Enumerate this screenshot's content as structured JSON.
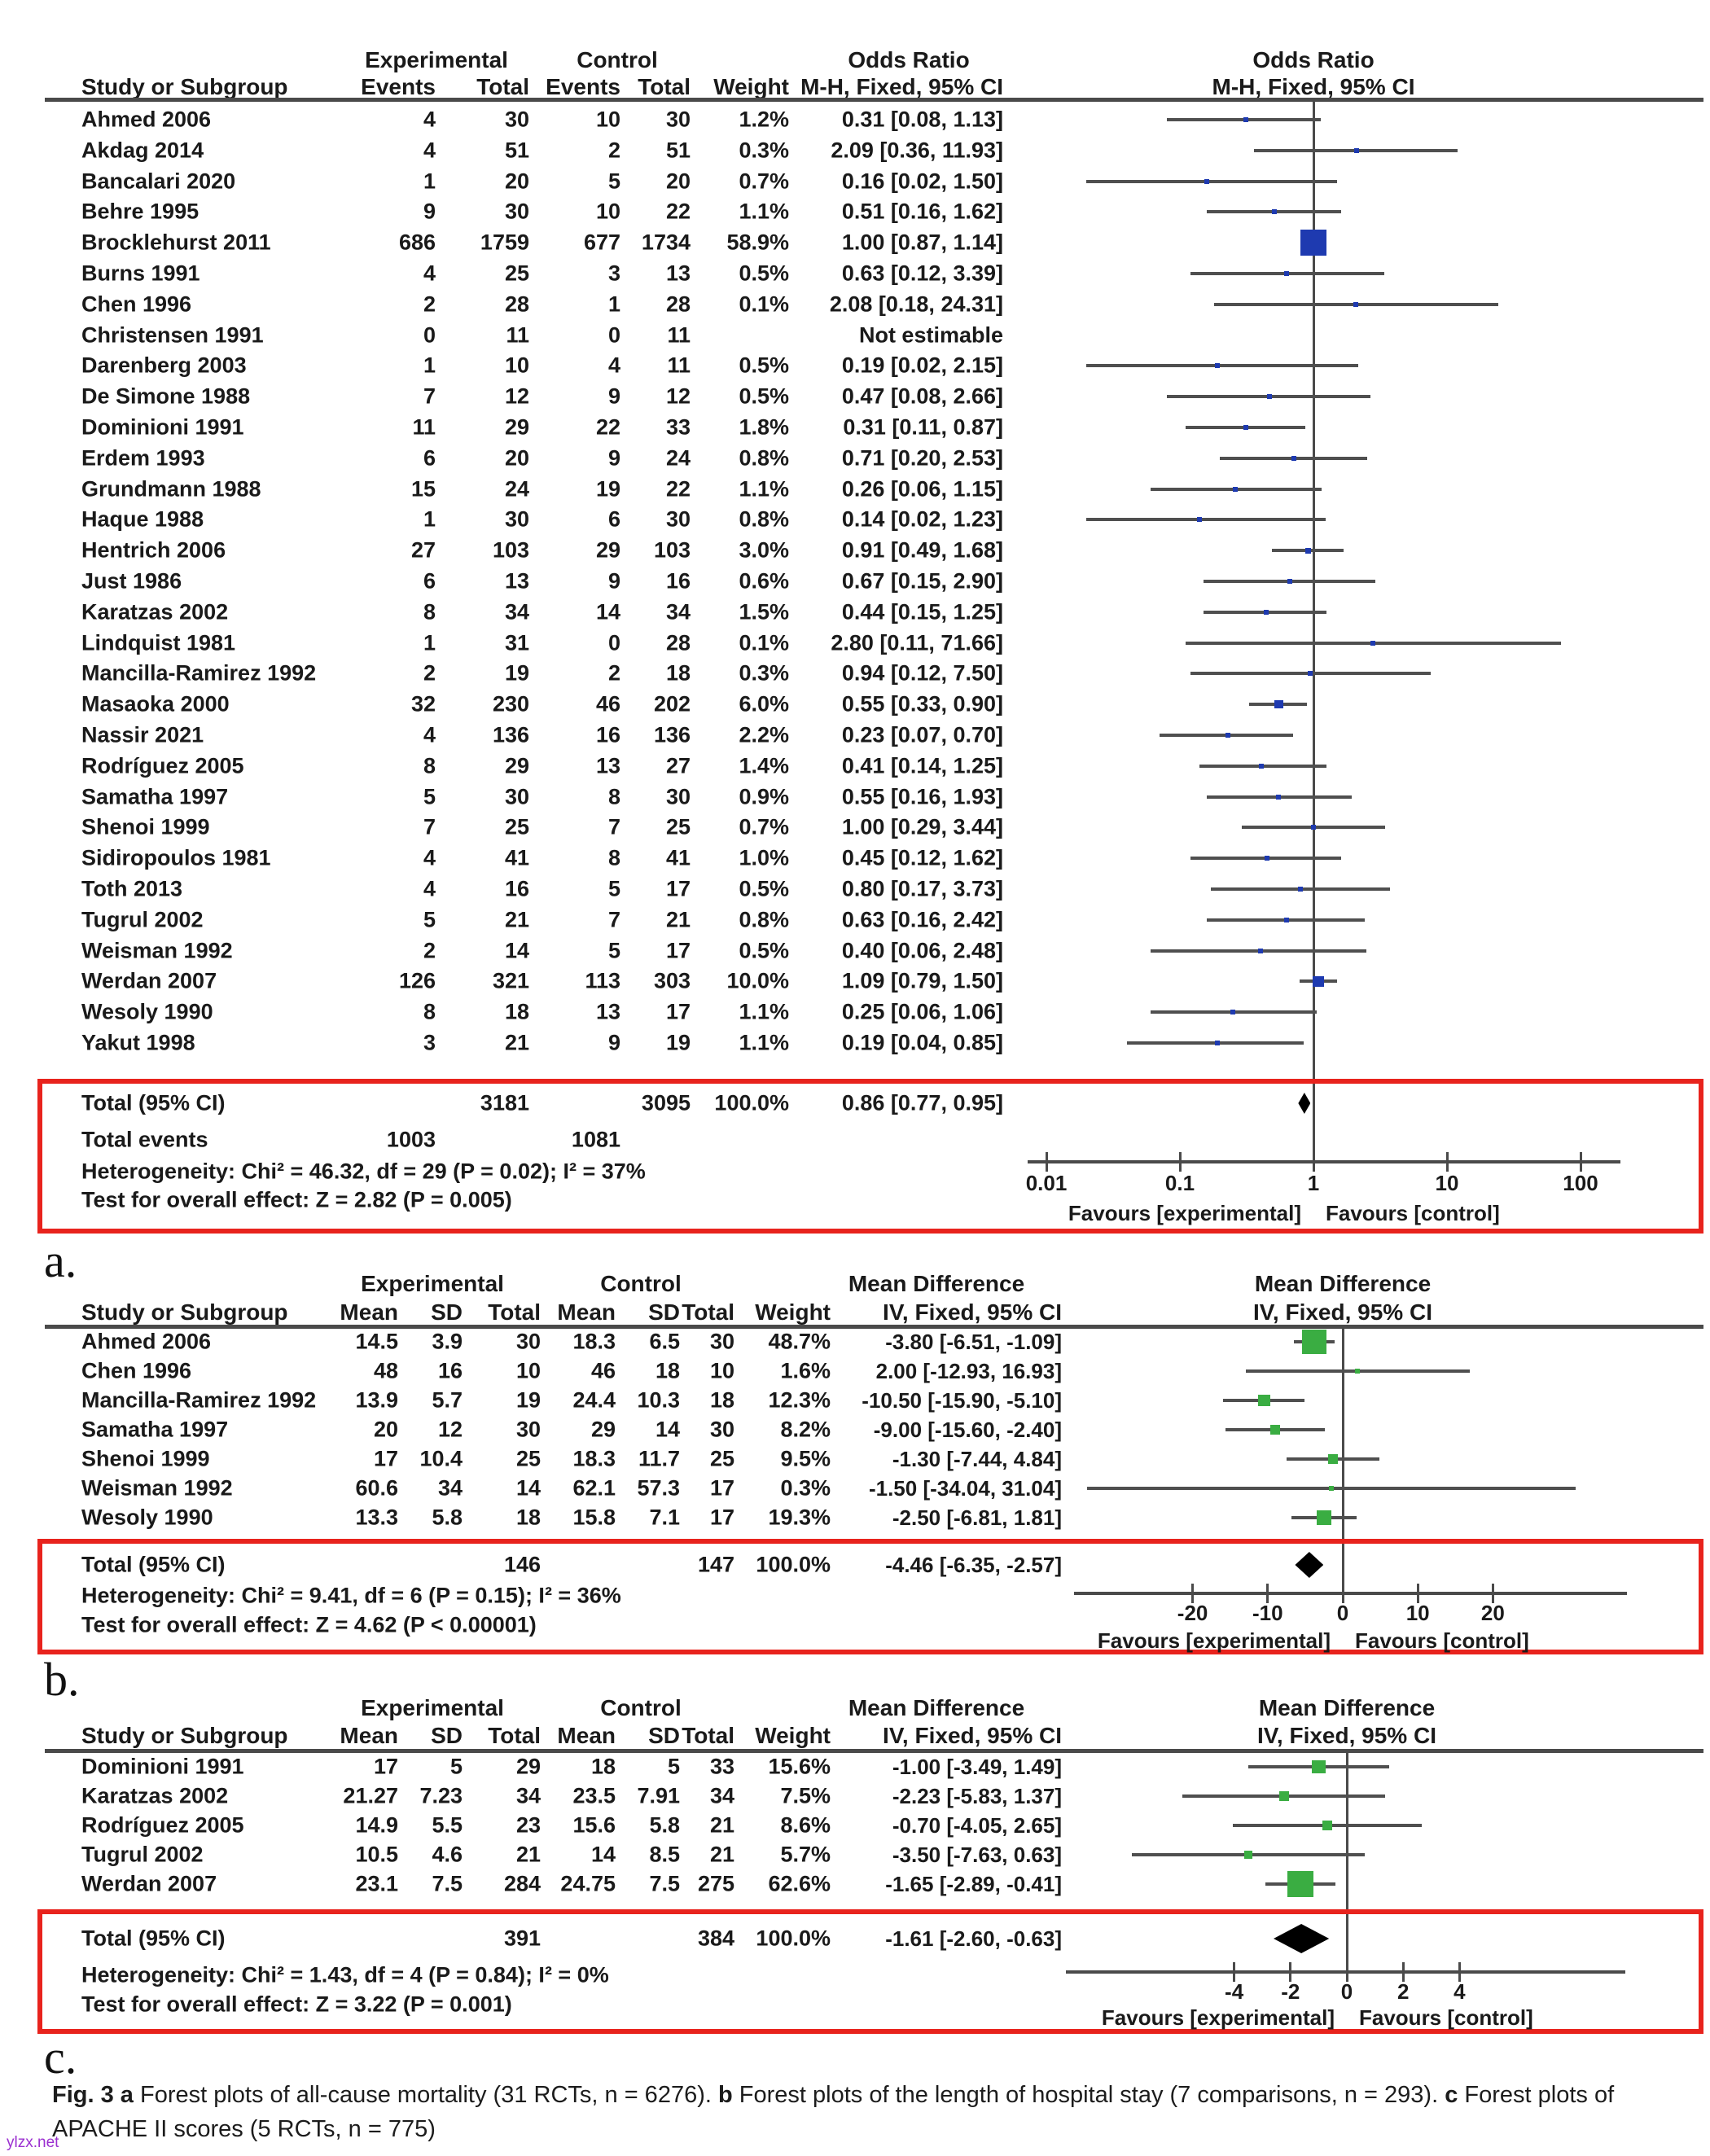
{
  "watermark": "ylzx.net",
  "caption": {
    "segments": [
      {
        "t": "Fig. 3",
        "b": true
      },
      {
        "t": "  ",
        "b": false
      },
      {
        "t": "a",
        "b": true
      },
      {
        "t": " Forest plots of all-cause mortality (31 RCTs, n = 6276). ",
        "b": false
      },
      {
        "t": "b",
        "b": true
      },
      {
        "t": " Forest plots of the length of hospital stay (7 comparisons, n = 293). ",
        "b": false
      },
      {
        "t": "c",
        "b": true
      },
      {
        "t": " Forest plots of APACHE II scores (5 RCTs, n = 775)",
        "b": false
      }
    ]
  },
  "colors": {
    "or_marker": "#1e3ab0",
    "md_marker": "#3aad42",
    "ci_line": "#4f4f4f",
    "axis": "#4a4a4a",
    "diamond": "#000000",
    "highlight_box": "#e8231d",
    "text": "#1a1a1a",
    "watermark": "#9b30d0"
  },
  "chart_data": [
    {
      "id": "a",
      "panel_letter": "a.",
      "type": "forest",
      "effect_measure": "Odds Ratio",
      "method": "M-H, Fixed, 95% CI",
      "group1": "Experimental",
      "group2": "Control",
      "study_col_header": "Study or Subgroup",
      "col_headers": [
        "Events",
        "Total",
        "Events",
        "Total",
        "Weight",
        "M-H, Fixed, 95% CI"
      ],
      "scale": "log10",
      "axis_ticks": [
        0.01,
        0.1,
        1,
        10,
        100
      ],
      "axis_tick_labels": [
        "0.01",
        "0.1",
        "1",
        "10",
        "100"
      ],
      "favours_left": "Favours [experimental]",
      "favours_right": "Favours [control]",
      "marker_color": "#1e3ab0",
      "studies": [
        {
          "study": "Ahmed 2006",
          "e1": "4",
          "t1": "30",
          "e2": "10",
          "t2": "30",
          "weight": "1.2%",
          "ci": "0.31 [0.08, 1.13]",
          "est": 0.31,
          "lo": 0.08,
          "hi": 1.13,
          "wnum": 1.2
        },
        {
          "study": "Akdag 2014",
          "e1": "4",
          "t1": "51",
          "e2": "2",
          "t2": "51",
          "weight": "0.3%",
          "ci": "2.09 [0.36, 11.93]",
          "est": 2.09,
          "lo": 0.36,
          "hi": 11.93,
          "wnum": 0.3
        },
        {
          "study": "Bancalari 2020",
          "e1": "1",
          "t1": "20",
          "e2": "5",
          "t2": "20",
          "weight": "0.7%",
          "ci": "0.16 [0.02, 1.50]",
          "est": 0.16,
          "lo": 0.02,
          "hi": 1.5,
          "wnum": 0.7
        },
        {
          "study": "Behre 1995",
          "e1": "9",
          "t1": "30",
          "e2": "10",
          "t2": "22",
          "weight": "1.1%",
          "ci": "0.51 [0.16, 1.62]",
          "est": 0.51,
          "lo": 0.16,
          "hi": 1.62,
          "wnum": 1.1
        },
        {
          "study": "Brocklehurst 2011",
          "e1": "686",
          "t1": "1759",
          "e2": "677",
          "t2": "1734",
          "weight": "58.9%",
          "ci": "1.00 [0.87, 1.14]",
          "est": 1.0,
          "lo": 0.87,
          "hi": 1.14,
          "wnum": 58.9
        },
        {
          "study": "Burns 1991",
          "e1": "4",
          "t1": "25",
          "e2": "3",
          "t2": "13",
          "weight": "0.5%",
          "ci": "0.63 [0.12, 3.39]",
          "est": 0.63,
          "lo": 0.12,
          "hi": 3.39,
          "wnum": 0.5
        },
        {
          "study": "Chen 1996",
          "e1": "2",
          "t1": "28",
          "e2": "1",
          "t2": "28",
          "weight": "0.1%",
          "ci": "2.08 [0.18, 24.31]",
          "est": 2.08,
          "lo": 0.18,
          "hi": 24.31,
          "wnum": 0.1
        },
        {
          "study": "Christensen 1991",
          "e1": "0",
          "t1": "11",
          "e2": "0",
          "t2": "11",
          "weight": "",
          "ci": "Not estimable",
          "est": null,
          "lo": null,
          "hi": null,
          "wnum": null
        },
        {
          "study": "Darenberg 2003",
          "e1": "1",
          "t1": "10",
          "e2": "4",
          "t2": "11",
          "weight": "0.5%",
          "ci": "0.19 [0.02, 2.15]",
          "est": 0.19,
          "lo": 0.02,
          "hi": 2.15,
          "wnum": 0.5
        },
        {
          "study": "De Simone 1988",
          "e1": "7",
          "t1": "12",
          "e2": "9",
          "t2": "12",
          "weight": "0.5%",
          "ci": "0.47 [0.08, 2.66]",
          "est": 0.47,
          "lo": 0.08,
          "hi": 2.66,
          "wnum": 0.5
        },
        {
          "study": "Dominioni 1991",
          "e1": "11",
          "t1": "29",
          "e2": "22",
          "t2": "33",
          "weight": "1.8%",
          "ci": "0.31 [0.11, 0.87]",
          "est": 0.31,
          "lo": 0.11,
          "hi": 0.87,
          "wnum": 1.8
        },
        {
          "study": "Erdem 1993",
          "e1": "6",
          "t1": "20",
          "e2": "9",
          "t2": "24",
          "weight": "0.8%",
          "ci": "0.71 [0.20, 2.53]",
          "est": 0.71,
          "lo": 0.2,
          "hi": 2.53,
          "wnum": 0.8
        },
        {
          "study": "Grundmann 1988",
          "e1": "15",
          "t1": "24",
          "e2": "19",
          "t2": "22",
          "weight": "1.1%",
          "ci": "0.26 [0.06, 1.15]",
          "est": 0.26,
          "lo": 0.06,
          "hi": 1.15,
          "wnum": 1.1
        },
        {
          "study": "Haque 1988",
          "e1": "1",
          "t1": "30",
          "e2": "6",
          "t2": "30",
          "weight": "0.8%",
          "ci": "0.14 [0.02, 1.23]",
          "est": 0.14,
          "lo": 0.02,
          "hi": 1.23,
          "wnum": 0.8
        },
        {
          "study": "Hentrich 2006",
          "e1": "27",
          "t1": "103",
          "e2": "29",
          "t2": "103",
          "weight": "3.0%",
          "ci": "0.91 [0.49, 1.68]",
          "est": 0.91,
          "lo": 0.49,
          "hi": 1.68,
          "wnum": 3.0
        },
        {
          "study": "Just 1986",
          "e1": "6",
          "t1": "13",
          "e2": "9",
          "t2": "16",
          "weight": "0.6%",
          "ci": "0.67 [0.15, 2.90]",
          "est": 0.67,
          "lo": 0.15,
          "hi": 2.9,
          "wnum": 0.6
        },
        {
          "study": "Karatzas 2002",
          "e1": "8",
          "t1": "34",
          "e2": "14",
          "t2": "34",
          "weight": "1.5%",
          "ci": "0.44 [0.15, 1.25]",
          "est": 0.44,
          "lo": 0.15,
          "hi": 1.25,
          "wnum": 1.5
        },
        {
          "study": "Lindquist 1981",
          "e1": "1",
          "t1": "31",
          "e2": "0",
          "t2": "28",
          "weight": "0.1%",
          "ci": "2.80 [0.11, 71.66]",
          "est": 2.8,
          "lo": 0.11,
          "hi": 71.66,
          "wnum": 0.1
        },
        {
          "study": "Mancilla-Ramirez 1992",
          "e1": "2",
          "t1": "19",
          "e2": "2",
          "t2": "18",
          "weight": "0.3%",
          "ci": "0.94 [0.12, 7.50]",
          "est": 0.94,
          "lo": 0.12,
          "hi": 7.5,
          "wnum": 0.3
        },
        {
          "study": "Masaoka 2000",
          "e1": "32",
          "t1": "230",
          "e2": "46",
          "t2": "202",
          "weight": "6.0%",
          "ci": "0.55 [0.33, 0.90]",
          "est": 0.55,
          "lo": 0.33,
          "hi": 0.9,
          "wnum": 6.0
        },
        {
          "study": "Nassir 2021",
          "e1": "4",
          "t1": "136",
          "e2": "16",
          "t2": "136",
          "weight": "2.2%",
          "ci": "0.23 [0.07, 0.70]",
          "est": 0.23,
          "lo": 0.07,
          "hi": 0.7,
          "wnum": 2.2
        },
        {
          "study": "Rodríguez 2005",
          "e1": "8",
          "t1": "29",
          "e2": "13",
          "t2": "27",
          "weight": "1.4%",
          "ci": "0.41 [0.14, 1.25]",
          "est": 0.41,
          "lo": 0.14,
          "hi": 1.25,
          "wnum": 1.4
        },
        {
          "study": "Samatha 1997",
          "e1": "5",
          "t1": "30",
          "e2": "8",
          "t2": "30",
          "weight": "0.9%",
          "ci": "0.55 [0.16, 1.93]",
          "est": 0.55,
          "lo": 0.16,
          "hi": 1.93,
          "wnum": 0.9
        },
        {
          "study": "Shenoi 1999",
          "e1": "7",
          "t1": "25",
          "e2": "7",
          "t2": "25",
          "weight": "0.7%",
          "ci": "1.00 [0.29, 3.44]",
          "est": 1.0,
          "lo": 0.29,
          "hi": 3.44,
          "wnum": 0.7
        },
        {
          "study": "Sidiropoulos 1981",
          "e1": "4",
          "t1": "41",
          "e2": "8",
          "t2": "41",
          "weight": "1.0%",
          "ci": "0.45 [0.12, 1.62]",
          "est": 0.45,
          "lo": 0.12,
          "hi": 1.62,
          "wnum": 1.0
        },
        {
          "study": "Toth 2013",
          "e1": "4",
          "t1": "16",
          "e2": "5",
          "t2": "17",
          "weight": "0.5%",
          "ci": "0.80 [0.17, 3.73]",
          "est": 0.8,
          "lo": 0.17,
          "hi": 3.73,
          "wnum": 0.5
        },
        {
          "study": "Tugrul 2002",
          "e1": "5",
          "t1": "21",
          "e2": "7",
          "t2": "21",
          "weight": "0.8%",
          "ci": "0.63 [0.16, 2.42]",
          "est": 0.63,
          "lo": 0.16,
          "hi": 2.42,
          "wnum": 0.8
        },
        {
          "study": "Weisman 1992",
          "e1": "2",
          "t1": "14",
          "e2": "5",
          "t2": "17",
          "weight": "0.5%",
          "ci": "0.40 [0.06, 2.48]",
          "est": 0.4,
          "lo": 0.06,
          "hi": 2.48,
          "wnum": 0.5
        },
        {
          "study": "Werdan 2007",
          "e1": "126",
          "t1": "321",
          "e2": "113",
          "t2": "303",
          "weight": "10.0%",
          "ci": "1.09 [0.79, 1.50]",
          "est": 1.09,
          "lo": 0.79,
          "hi": 1.5,
          "wnum": 10.0
        },
        {
          "study": "Wesoly 1990",
          "e1": "8",
          "t1": "18",
          "e2": "13",
          "t2": "17",
          "weight": "1.1%",
          "ci": "0.25 [0.06, 1.06]",
          "est": 0.25,
          "lo": 0.06,
          "hi": 1.06,
          "wnum": 1.1
        },
        {
          "study": "Yakut 1998",
          "e1": "3",
          "t1": "21",
          "e2": "9",
          "t2": "19",
          "weight": "1.1%",
          "ci": "0.19 [0.04, 0.85]",
          "est": 0.19,
          "lo": 0.04,
          "hi": 0.85,
          "wnum": 1.1
        }
      ],
      "total": {
        "label": "Total (95% CI)",
        "t1": "3181",
        "t2": "3095",
        "weight": "100.0%",
        "ci": "0.86 [0.77, 0.95]",
        "est": 0.86,
        "lo": 0.77,
        "hi": 0.95
      },
      "total_events": {
        "label": "Total events",
        "e1": "1003",
        "e2": "1081"
      },
      "heterogeneity": "Heterogeneity: Chi² = 46.32, df = 29 (P = 0.02); I² = 37%",
      "overall_effect": "Test for overall effect: Z = 2.82 (P = 0.005)"
    },
    {
      "id": "b",
      "panel_letter": "b.",
      "type": "forest",
      "effect_measure": "Mean Difference",
      "method": "IV, Fixed, 95% CI",
      "group1": "Experimental",
      "group2": "Control",
      "study_col_header": "Study or Subgroup",
      "col_headers": [
        "Mean",
        "SD",
        "Total",
        "Mean",
        "SD",
        "Total",
        "Weight",
        "IV, Fixed, 95% CI"
      ],
      "scale": "linear",
      "axis_ticks": [
        -20,
        -10,
        0,
        10,
        20
      ],
      "axis_tick_labels": [
        "-20",
        "-10",
        "0",
        "10",
        "20"
      ],
      "favours_left": "Favours [experimental]",
      "favours_right": "Favours [control]",
      "marker_color": "#3aad42",
      "studies": [
        {
          "study": "Ahmed 2006",
          "m1": "14.5",
          "sd1": "3.9",
          "t1": "30",
          "m2": "18.3",
          "sd2": "6.5",
          "t2": "30",
          "weight": "48.7%",
          "ci": "-3.80 [-6.51, -1.09]",
          "est": -3.8,
          "lo": -6.51,
          "hi": -1.09,
          "wnum": 48.7
        },
        {
          "study": "Chen 1996",
          "m1": "48",
          "sd1": "16",
          "t1": "10",
          "m2": "46",
          "sd2": "18",
          "t2": "10",
          "weight": "1.6%",
          "ci": "2.00 [-12.93, 16.93]",
          "est": 2.0,
          "lo": -12.93,
          "hi": 16.93,
          "wnum": 1.6
        },
        {
          "study": "Mancilla-Ramirez 1992",
          "m1": "13.9",
          "sd1": "5.7",
          "t1": "19",
          "m2": "24.4",
          "sd2": "10.3",
          "t2": "18",
          "weight": "12.3%",
          "ci": "-10.50 [-15.90, -5.10]",
          "est": -10.5,
          "lo": -15.9,
          "hi": -5.1,
          "wnum": 12.3
        },
        {
          "study": "Samatha 1997",
          "m1": "20",
          "sd1": "12",
          "t1": "30",
          "m2": "29",
          "sd2": "14",
          "t2": "30",
          "weight": "8.2%",
          "ci": "-9.00 [-15.60, -2.40]",
          "est": -9.0,
          "lo": -15.6,
          "hi": -2.4,
          "wnum": 8.2
        },
        {
          "study": "Shenoi 1999",
          "m1": "17",
          "sd1": "10.4",
          "t1": "25",
          "m2": "18.3",
          "sd2": "11.7",
          "t2": "25",
          "weight": "9.5%",
          "ci": "-1.30 [-7.44, 4.84]",
          "est": -1.3,
          "lo": -7.44,
          "hi": 4.84,
          "wnum": 9.5
        },
        {
          "study": "Weisman 1992",
          "m1": "60.6",
          "sd1": "34",
          "t1": "14",
          "m2": "62.1",
          "sd2": "57.3",
          "t2": "17",
          "weight": "0.3%",
          "ci": "-1.50 [-34.04, 31.04]",
          "est": -1.5,
          "lo": -34.04,
          "hi": 31.04,
          "wnum": 0.3
        },
        {
          "study": "Wesoly 1990",
          "m1": "13.3",
          "sd1": "5.8",
          "t1": "18",
          "m2": "15.8",
          "sd2": "7.1",
          "t2": "17",
          "weight": "19.3%",
          "ci": "-2.50 [-6.81, 1.81]",
          "est": -2.5,
          "lo": -6.81,
          "hi": 1.81,
          "wnum": 19.3
        }
      ],
      "total": {
        "label": "Total (95% CI)",
        "t1": "146",
        "t2": "147",
        "weight": "100.0%",
        "ci": "-4.46 [-6.35, -2.57]",
        "est": -4.46,
        "lo": -6.35,
        "hi": -2.57
      },
      "heterogeneity": "Heterogeneity: Chi² = 9.41, df = 6 (P = 0.15); I² = 36%",
      "overall_effect": "Test for overall effect: Z = 4.62 (P < 0.00001)"
    },
    {
      "id": "c",
      "panel_letter": "c.",
      "type": "forest",
      "effect_measure": "Mean Difference",
      "method": "IV, Fixed, 95% CI",
      "group1": "Experimental",
      "group2": "Control",
      "study_col_header": "Study or Subgroup",
      "col_headers": [
        "Mean",
        "SD",
        "Total",
        "Mean",
        "SD",
        "Total",
        "Weight",
        "IV, Fixed, 95% CI"
      ],
      "scale": "linear",
      "axis_ticks": [
        -4,
        -2,
        0,
        2,
        4
      ],
      "axis_tick_labels": [
        "-4",
        "-2",
        "0",
        "2",
        "4"
      ],
      "favours_left": "Favours [experimental]",
      "favours_right": "Favours [control]",
      "marker_color": "#3aad42",
      "studies": [
        {
          "study": "Dominioni 1991",
          "m1": "17",
          "sd1": "5",
          "t1": "29",
          "m2": "18",
          "sd2": "5",
          "t2": "33",
          "weight": "15.6%",
          "ci": "-1.00 [-3.49, 1.49]",
          "est": -1.0,
          "lo": -3.49,
          "hi": 1.49,
          "wnum": 15.6
        },
        {
          "study": "Karatzas 2002",
          "m1": "21.27",
          "sd1": "7.23",
          "t1": "34",
          "m2": "23.5",
          "sd2": "7.91",
          "t2": "34",
          "weight": "7.5%",
          "ci": "-2.23 [-5.83, 1.37]",
          "est": -2.23,
          "lo": -5.83,
          "hi": 1.37,
          "wnum": 7.5
        },
        {
          "study": "Rodríguez 2005",
          "m1": "14.9",
          "sd1": "5.5",
          "t1": "23",
          "m2": "15.6",
          "sd2": "5.8",
          "t2": "21",
          "weight": "8.6%",
          "ci": "-0.70 [-4.05, 2.65]",
          "est": -0.7,
          "lo": -4.05,
          "hi": 2.65,
          "wnum": 8.6
        },
        {
          "study": "Tugrul 2002",
          "m1": "10.5",
          "sd1": "4.6",
          "t1": "21",
          "m2": "14",
          "sd2": "8.5",
          "t2": "21",
          "weight": "5.7%",
          "ci": "-3.50 [-7.63, 0.63]",
          "est": -3.5,
          "lo": -7.63,
          "hi": 0.63,
          "wnum": 5.7
        },
        {
          "study": "Werdan 2007",
          "m1": "23.1",
          "sd1": "7.5",
          "t1": "284",
          "m2": "24.75",
          "sd2": "7.5",
          "t2": "275",
          "weight": "62.6%",
          "ci": "-1.65 [-2.89, -0.41]",
          "est": -1.65,
          "lo": -2.89,
          "hi": -0.41,
          "wnum": 62.6
        }
      ],
      "total": {
        "label": "Total (95% CI)",
        "t1": "391",
        "t2": "384",
        "weight": "100.0%",
        "ci": "-1.61 [-2.60, -0.63]",
        "est": -1.61,
        "lo": -2.6,
        "hi": -0.63
      },
      "heterogeneity": "Heterogeneity: Chi² = 1.43, df = 4 (P = 0.84); I² = 0%",
      "overall_effect": "Test for overall effect: Z = 3.22 (P = 0.001)"
    }
  ]
}
